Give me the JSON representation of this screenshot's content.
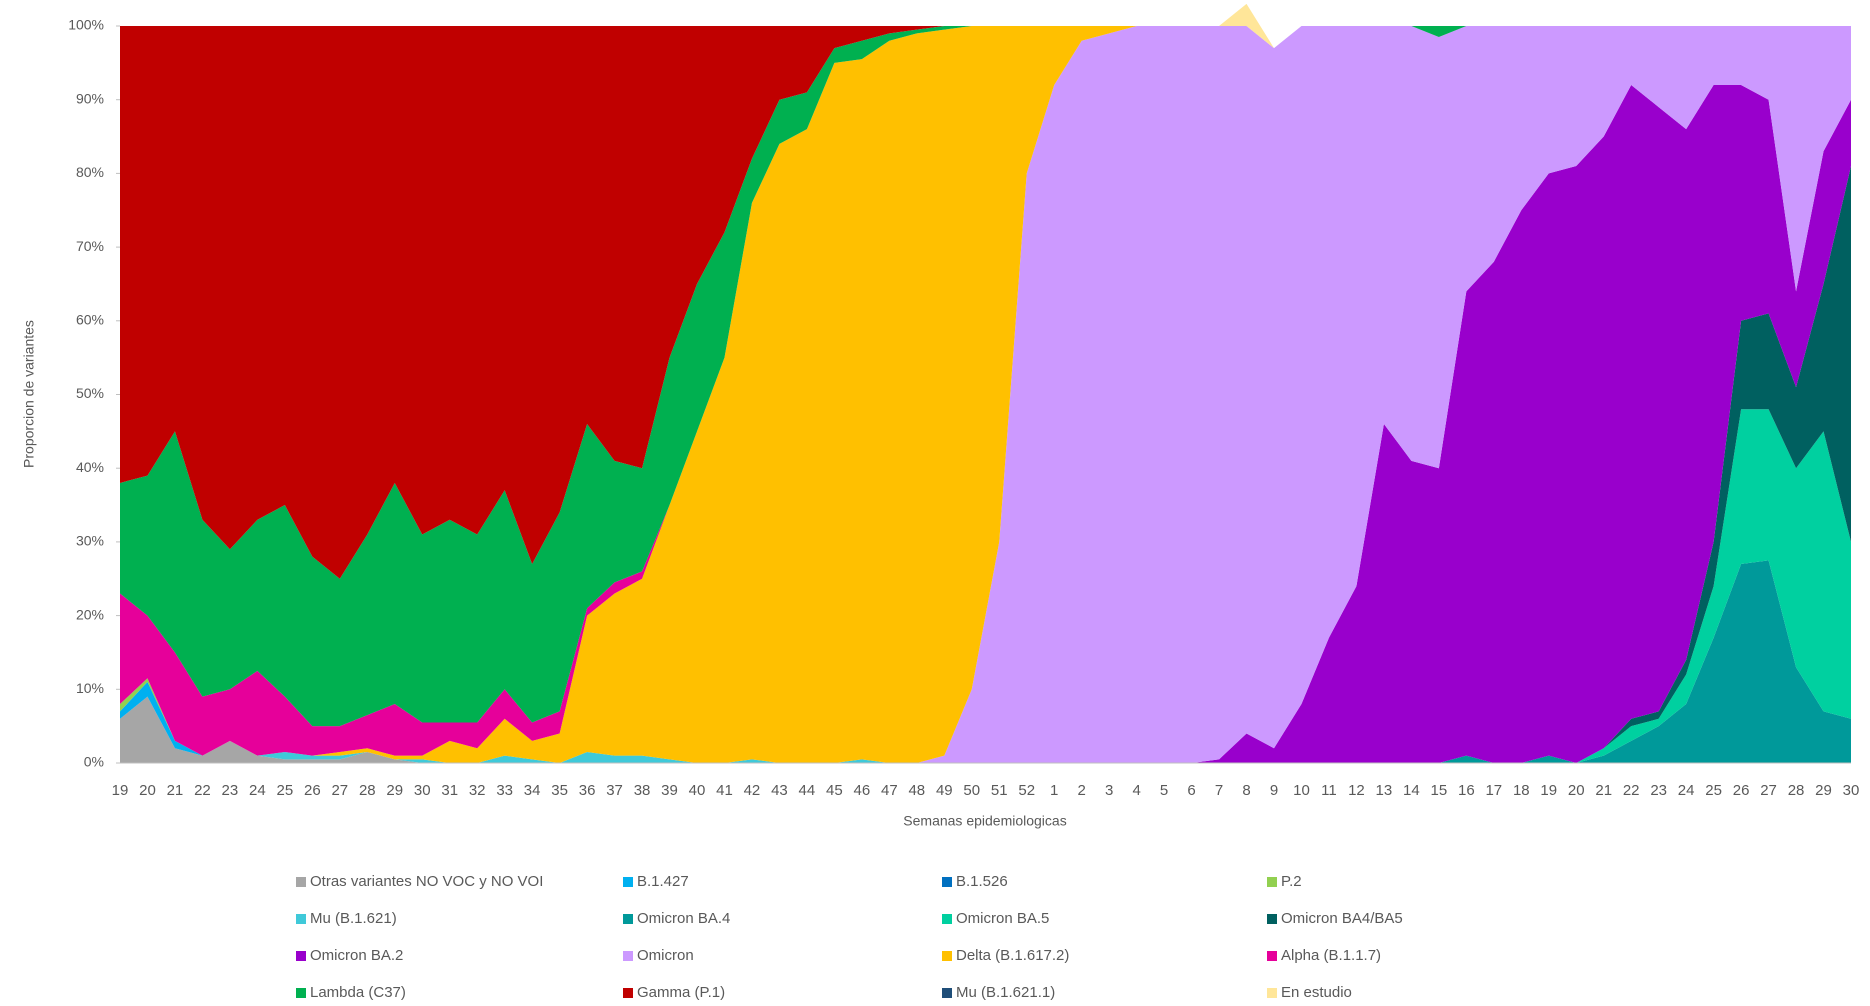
{
  "chart_data": {
    "type": "stacked_area_100",
    "y_label": "Proporcion de variantes",
    "x_label": "Semanas epidemiologicas",
    "categories": [
      "19",
      "20",
      "21",
      "22",
      "23",
      "24",
      "25",
      "26",
      "27",
      "28",
      "29",
      "30",
      "31",
      "32",
      "33",
      "34",
      "35",
      "36",
      "37",
      "38",
      "39",
      "40",
      "41",
      "42",
      "43",
      "44",
      "45",
      "46",
      "47",
      "48",
      "49",
      "50",
      "51",
      "52",
      "1",
      "2",
      "3",
      "4",
      "5",
      "6",
      "7",
      "8",
      "9",
      "10",
      "11",
      "12",
      "13",
      "14",
      "15",
      "16",
      "17",
      "18",
      "19",
      "20",
      "21",
      "22",
      "23",
      "24",
      "25",
      "26",
      "27",
      "28",
      "29",
      "30"
    ],
    "ylim": [
      0,
      100
    ],
    "yticks": [
      {
        "value": 0,
        "label": "0%"
      },
      {
        "value": 10,
        "label": "10%"
      },
      {
        "value": 20,
        "label": "20%"
      },
      {
        "value": 30,
        "label": "30%"
      },
      {
        "value": 40,
        "label": "40%"
      },
      {
        "value": 50,
        "label": "50%"
      },
      {
        "value": 60,
        "label": "60%"
      },
      {
        "value": 70,
        "label": "70%"
      },
      {
        "value": 80,
        "label": "80%"
      },
      {
        "value": 90,
        "label": "90%"
      },
      {
        "value": 100,
        "label": "100%"
      }
    ],
    "series": [
      {
        "name": "Otras variantes NO VOC y NO VOI",
        "color": "#a6a6a6",
        "values": [
          6,
          9,
          2,
          1,
          3,
          1,
          0.5,
          0.5,
          0.5,
          1.5,
          0.5,
          0,
          0,
          0,
          0,
          0,
          0,
          0,
          0,
          0,
          0,
          0,
          0,
          0,
          0,
          0,
          0,
          0,
          0,
          0,
          0,
          0,
          0,
          0,
          0,
          0,
          0,
          0,
          0,
          0,
          0,
          0,
          0,
          0,
          0,
          0,
          0,
          0,
          0,
          0,
          0,
          0,
          0,
          0,
          0,
          0,
          0,
          0,
          0,
          0,
          0,
          0,
          0,
          0
        ]
      },
      {
        "name": "B.1.427",
        "color": "#00b0f0",
        "values": [
          1,
          2,
          1,
          0,
          0,
          0,
          0,
          0,
          0,
          0,
          0,
          0,
          0,
          0,
          0,
          0,
          0,
          0,
          0,
          0,
          0,
          0,
          0,
          0,
          0,
          0,
          0,
          0,
          0,
          0,
          0,
          0,
          0,
          0,
          0,
          0,
          0,
          0,
          0,
          0,
          0,
          0,
          0,
          0,
          0,
          0,
          0,
          0,
          0,
          0,
          0,
          0,
          0,
          0,
          0,
          0,
          0,
          0,
          0,
          0,
          0,
          0,
          0,
          0
        ]
      },
      {
        "name": "B.1.526",
        "color": "#0070c0",
        "values": [
          0,
          0,
          0,
          0,
          0,
          0,
          0,
          0,
          0,
          0,
          0,
          0,
          0,
          0,
          0,
          0,
          0,
          0,
          0,
          0,
          0,
          0,
          0,
          0,
          0,
          0,
          0,
          0,
          0,
          0,
          0,
          0,
          0,
          0,
          0,
          0,
          0,
          0,
          0,
          0,
          0,
          0,
          0,
          0,
          0,
          0,
          0,
          0,
          0,
          0,
          0,
          0,
          0,
          0,
          0,
          0,
          0,
          0,
          0,
          0,
          0,
          0,
          0,
          0
        ]
      },
      {
        "name": "P.2",
        "color": "#92d050",
        "values": [
          1,
          0.5,
          0,
          0,
          0,
          0,
          0,
          0,
          0,
          0,
          0,
          0,
          0,
          0,
          0,
          0,
          0,
          0,
          0,
          0,
          0,
          0,
          0,
          0,
          0,
          0,
          0,
          0,
          0,
          0,
          0,
          0,
          0,
          0,
          0,
          0,
          0,
          0,
          0,
          0,
          0,
          0,
          0,
          0,
          0,
          0,
          0,
          0,
          0,
          0,
          0,
          0,
          0,
          0,
          0,
          0,
          0,
          0,
          0,
          0,
          0,
          0,
          0,
          0
        ]
      },
      {
        "name": "Mu (B.1.621)",
        "color": "#3fc9d9",
        "values": [
          0,
          0,
          0,
          0,
          0,
          0,
          1,
          0.5,
          0.5,
          0,
          0,
          0.5,
          0,
          0,
          1,
          0.5,
          0,
          1.5,
          1,
          1,
          0.5,
          0,
          0,
          0.5,
          0,
          0,
          0,
          0.5,
          0,
          0,
          0,
          0,
          0,
          0,
          0,
          0,
          0,
          0,
          0,
          0,
          0,
          0,
          0,
          0,
          0,
          0,
          0,
          0,
          0,
          0,
          0,
          0,
          0,
          0,
          0,
          0,
          0,
          0,
          0,
          0,
          0,
          0,
          0,
          0
        ]
      },
      {
        "name": "Omicron BA.4",
        "color": "#00999a",
        "values": [
          0,
          0,
          0,
          0,
          0,
          0,
          0,
          0,
          0,
          0,
          0,
          0,
          0,
          0,
          0,
          0,
          0,
          0,
          0,
          0,
          0,
          0,
          0,
          0,
          0,
          0,
          0,
          0,
          0,
          0,
          0,
          0,
          0,
          0,
          0,
          0,
          0,
          0,
          0,
          0,
          0,
          0,
          0,
          0,
          0,
          0,
          0,
          0,
          0,
          1,
          0,
          0,
          1,
          0,
          1,
          3,
          5,
          8,
          17,
          27,
          27.5,
          13,
          7,
          6
        ]
      },
      {
        "name": "Omicron BA.5",
        "color": "#00d0a0",
        "values": [
          0,
          0,
          0,
          0,
          0,
          0,
          0,
          0,
          0,
          0,
          0,
          0,
          0,
          0,
          0,
          0,
          0,
          0,
          0,
          0,
          0,
          0,
          0,
          0,
          0,
          0,
          0,
          0,
          0,
          0,
          0,
          0,
          0,
          0,
          0,
          0,
          0,
          0,
          0,
          0,
          0,
          0,
          0,
          0,
          0,
          0,
          0,
          0,
          0,
          0,
          0,
          0,
          0,
          0,
          1,
          2,
          1,
          4,
          7,
          21,
          20.5,
          27,
          38,
          24
        ]
      },
      {
        "name": "Omicron BA4/BA5",
        "color": "#006060",
        "values": [
          0,
          0,
          0,
          0,
          0,
          0,
          0,
          0,
          0,
          0,
          0,
          0,
          0,
          0,
          0,
          0,
          0,
          0,
          0,
          0,
          0,
          0,
          0,
          0,
          0,
          0,
          0,
          0,
          0,
          0,
          0,
          0,
          0,
          0,
          0,
          0,
          0,
          0,
          0,
          0,
          0,
          0,
          0,
          0,
          0,
          0,
          0,
          0,
          0,
          0,
          0,
          0,
          0,
          0,
          0,
          1,
          1,
          2,
          6,
          12,
          13,
          11,
          20,
          51
        ]
      },
      {
        "name": "Omicron BA.2",
        "color": "#9900cc",
        "values": [
          0,
          0,
          0,
          0,
          0,
          0,
          0,
          0,
          0,
          0,
          0,
          0,
          0,
          0,
          0,
          0,
          0,
          0,
          0,
          0,
          0,
          0,
          0,
          0,
          0,
          0,
          0,
          0,
          0,
          0,
          0,
          0,
          0,
          0,
          0,
          0,
          0,
          0,
          0,
          0,
          0.5,
          4,
          2,
          8,
          17,
          24,
          46,
          41,
          40,
          63,
          68,
          75,
          79,
          81,
          83,
          86,
          82,
          72,
          62,
          32,
          29,
          13,
          18,
          9
        ]
      },
      {
        "name": "Omicron",
        "color": "#cc99ff",
        "values": [
          0,
          0,
          0,
          0,
          0,
          0,
          0,
          0,
          0,
          0,
          0,
          0,
          0,
          0,
          0,
          0,
          0,
          0,
          0,
          0,
          0,
          0,
          0,
          0,
          0,
          0,
          0,
          0,
          0,
          0,
          1,
          10,
          30,
          80,
          92,
          98,
          99,
          100,
          100,
          100,
          99.5,
          96,
          95,
          92,
          83,
          76,
          54,
          59,
          58.5,
          36,
          32,
          25,
          20,
          19,
          15,
          8,
          11,
          14,
          8,
          8,
          10,
          36,
          17,
          10
        ]
      },
      {
        "name": "Delta (B.1.617.2)",
        "color": "#ffc000",
        "values": [
          0,
          0,
          0,
          0,
          0,
          0,
          0,
          0,
          0.5,
          0.5,
          0.5,
          0.5,
          3,
          2,
          5,
          2.5,
          4,
          18.5,
          22,
          24,
          34.5,
          45,
          55,
          75.5,
          84,
          86,
          95,
          95,
          98,
          99,
          98.5,
          90,
          70,
          20,
          8,
          2,
          1,
          0,
          0,
          0,
          0,
          0,
          0,
          0,
          0,
          0,
          0,
          0,
          0,
          0,
          0,
          0,
          0,
          0,
          0,
          0,
          0,
          0,
          0,
          0,
          0,
          0,
          0,
          0
        ]
      },
      {
        "name": "Alpha (B.1.1.7)",
        "color": "#e6009a",
        "values": [
          15,
          8.5,
          12,
          8,
          7,
          11.5,
          7.5,
          4,
          3.5,
          4.5,
          7,
          4.5,
          2.5,
          3.5,
          4,
          2.5,
          3,
          1,
          1.5,
          1,
          0,
          0,
          0,
          0,
          0,
          0,
          0,
          0,
          0,
          0,
          0,
          0,
          0,
          0,
          0,
          0,
          0,
          0,
          0,
          0,
          0,
          0,
          0,
          0,
          0,
          0,
          0,
          0,
          0,
          0,
          0,
          0,
          0,
          0,
          0,
          0,
          0,
          0,
          0,
          0,
          0,
          0,
          0,
          0
        ]
      },
      {
        "name": "Lambda (C37)",
        "color": "#00b050",
        "values": [
          15,
          19,
          30,
          24,
          19,
          20.5,
          26,
          23,
          20,
          24.5,
          30,
          25.5,
          27.5,
          25.5,
          27,
          21.5,
          27,
          25,
          16.5,
          14,
          20,
          20,
          17,
          6,
          6,
          5,
          2,
          2.5,
          1,
          0.5,
          0.5,
          0,
          0,
          0,
          0,
          0,
          0,
          0,
          0,
          0,
          0,
          0,
          0,
          0,
          0,
          0,
          0,
          0,
          1.5,
          0,
          0,
          0,
          0,
          0,
          0,
          0,
          0,
          0,
          0,
          0,
          0,
          0,
          0,
          0
        ]
      },
      {
        "name": "Gamma (P.1)",
        "color": "#c00000",
        "values": [
          62,
          61,
          55,
          67,
          71,
          67,
          65,
          72,
          75,
          69,
          62,
          69,
          67,
          69,
          63,
          73,
          66,
          54,
          59,
          60,
          45,
          35,
          28,
          18,
          10,
          9,
          3,
          2,
          1,
          0.5,
          0,
          0,
          0,
          0,
          0,
          0,
          0,
          0,
          0,
          0,
          0,
          0,
          0,
          0,
          0,
          0,
          0,
          0,
          0,
          0,
          0,
          0,
          0,
          0,
          0,
          0,
          0,
          0,
          0,
          0,
          0,
          0,
          0,
          0
        ]
      },
      {
        "name": "Mu (B.1.621.1)",
        "color": "#1f4e79",
        "values": [
          0,
          0,
          0,
          0,
          0,
          0,
          0,
          0,
          0,
          0,
          0,
          0,
          0,
          0,
          0,
          0,
          0,
          0,
          0,
          0,
          0,
          0,
          0,
          0,
          0,
          0,
          0,
          0,
          0,
          0,
          0,
          0,
          0,
          0,
          0,
          0,
          0,
          0,
          0,
          0,
          0,
          0,
          0,
          0,
          0,
          0,
          0,
          0,
          0,
          0,
          0,
          0,
          0,
          0,
          0,
          0,
          0,
          0,
          0,
          0,
          0,
          0,
          0,
          0
        ]
      },
      {
        "name": "En estudio",
        "color": "#ffe699",
        "values": [
          0,
          0,
          0,
          0,
          0,
          0,
          0,
          0,
          0,
          0,
          0,
          0,
          0,
          0,
          0,
          0,
          0,
          0,
          0,
          0,
          0,
          0,
          0,
          0,
          0,
          0,
          0,
          0,
          0,
          0,
          0,
          0,
          0,
          0,
          0,
          0,
          0,
          0,
          0,
          0,
          0,
          3,
          0,
          0,
          0,
          0,
          0,
          0,
          0,
          0,
          0,
          0,
          0,
          0,
          0,
          0,
          0,
          0,
          0,
          0,
          0,
          0,
          0,
          0
        ]
      }
    ]
  }
}
